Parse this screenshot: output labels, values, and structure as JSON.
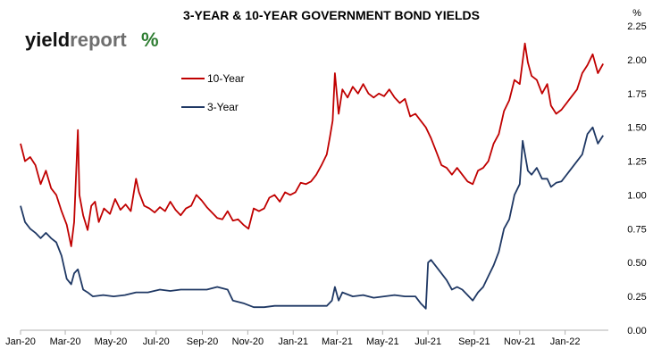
{
  "logo": {
    "part1": "yield",
    "part2": "report",
    "symbol": "%"
  },
  "chart_data": {
    "type": "line",
    "title": "3-YEAR & 10-YEAR GOVERNMENT BOND YIELDS",
    "y_unit": "%",
    "x_ticks": [
      "Jan-20",
      "Mar-20",
      "May-20",
      "Jul-20",
      "Sep-20",
      "Nov-20",
      "Jan-21",
      "Mar-21",
      "May-21",
      "Jul-21",
      "Sep-21",
      "Nov-21",
      "Jan-22"
    ],
    "y_ticks": [
      "2.25",
      "2.00",
      "1.75",
      "1.50",
      "1.25",
      "1.00",
      "0.75",
      "0.50",
      "0.25",
      "0.00"
    ],
    "ylim": [
      0,
      2.25
    ],
    "x_range": [
      "2020-01-01",
      "2022-02-28"
    ],
    "grid": false,
    "legend_position": "top-left",
    "series": [
      {
        "name": "10-Year",
        "color": "#c00000",
        "points": [
          [
            "2020-01-01",
            1.38
          ],
          [
            "2020-01-07",
            1.25
          ],
          [
            "2020-01-14",
            1.28
          ],
          [
            "2020-01-21",
            1.22
          ],
          [
            "2020-01-28",
            1.08
          ],
          [
            "2020-02-04",
            1.18
          ],
          [
            "2020-02-11",
            1.05
          ],
          [
            "2020-02-18",
            1.0
          ],
          [
            "2020-02-25",
            0.88
          ],
          [
            "2020-03-03",
            0.78
          ],
          [
            "2020-03-09",
            0.62
          ],
          [
            "2020-03-13",
            0.8
          ],
          [
            "2020-03-18",
            1.48
          ],
          [
            "2020-03-20",
            1.0
          ],
          [
            "2020-03-25",
            0.85
          ],
          [
            "2020-03-31",
            0.74
          ],
          [
            "2020-04-05",
            0.92
          ],
          [
            "2020-04-10",
            0.95
          ],
          [
            "2020-04-15",
            0.8
          ],
          [
            "2020-04-22",
            0.9
          ],
          [
            "2020-04-30",
            0.86
          ],
          [
            "2020-05-07",
            0.97
          ],
          [
            "2020-05-14",
            0.89
          ],
          [
            "2020-05-21",
            0.93
          ],
          [
            "2020-05-28",
            0.88
          ],
          [
            "2020-06-04",
            1.12
          ],
          [
            "2020-06-08",
            1.02
          ],
          [
            "2020-06-15",
            0.92
          ],
          [
            "2020-06-22",
            0.9
          ],
          [
            "2020-06-29",
            0.87
          ],
          [
            "2020-07-06",
            0.91
          ],
          [
            "2020-07-13",
            0.88
          ],
          [
            "2020-07-20",
            0.95
          ],
          [
            "2020-07-27",
            0.89
          ],
          [
            "2020-08-03",
            0.85
          ],
          [
            "2020-08-10",
            0.9
          ],
          [
            "2020-08-17",
            0.92
          ],
          [
            "2020-08-24",
            1.0
          ],
          [
            "2020-08-31",
            0.96
          ],
          [
            "2020-09-07",
            0.91
          ],
          [
            "2020-09-14",
            0.87
          ],
          [
            "2020-09-21",
            0.83
          ],
          [
            "2020-09-28",
            0.82
          ],
          [
            "2020-10-05",
            0.88
          ],
          [
            "2020-10-12",
            0.81
          ],
          [
            "2020-10-19",
            0.82
          ],
          [
            "2020-10-26",
            0.78
          ],
          [
            "2020-11-02",
            0.75
          ],
          [
            "2020-11-09",
            0.9
          ],
          [
            "2020-11-16",
            0.88
          ],
          [
            "2020-11-23",
            0.9
          ],
          [
            "2020-11-30",
            0.98
          ],
          [
            "2020-12-07",
            1.0
          ],
          [
            "2020-12-14",
            0.95
          ],
          [
            "2020-12-21",
            1.02
          ],
          [
            "2020-12-28",
            1.0
          ],
          [
            "2021-01-04",
            1.02
          ],
          [
            "2021-01-11",
            1.09
          ],
          [
            "2021-01-18",
            1.08
          ],
          [
            "2021-01-25",
            1.1
          ],
          [
            "2021-02-01",
            1.15
          ],
          [
            "2021-02-08",
            1.22
          ],
          [
            "2021-02-15",
            1.3
          ],
          [
            "2021-02-19",
            1.42
          ],
          [
            "2021-02-23",
            1.55
          ],
          [
            "2021-02-26",
            1.9
          ],
          [
            "2021-03-03",
            1.6
          ],
          [
            "2021-03-08",
            1.78
          ],
          [
            "2021-03-15",
            1.72
          ],
          [
            "2021-03-22",
            1.8
          ],
          [
            "2021-03-29",
            1.75
          ],
          [
            "2021-04-05",
            1.82
          ],
          [
            "2021-04-12",
            1.75
          ],
          [
            "2021-04-19",
            1.72
          ],
          [
            "2021-04-26",
            1.75
          ],
          [
            "2021-05-03",
            1.73
          ],
          [
            "2021-05-10",
            1.78
          ],
          [
            "2021-05-17",
            1.72
          ],
          [
            "2021-05-24",
            1.68
          ],
          [
            "2021-05-31",
            1.71
          ],
          [
            "2021-06-07",
            1.58
          ],
          [
            "2021-06-14",
            1.6
          ],
          [
            "2021-06-21",
            1.55
          ],
          [
            "2021-06-28",
            1.5
          ],
          [
            "2021-07-05",
            1.42
          ],
          [
            "2021-07-12",
            1.32
          ],
          [
            "2021-07-19",
            1.22
          ],
          [
            "2021-07-26",
            1.2
          ],
          [
            "2021-08-02",
            1.15
          ],
          [
            "2021-08-09",
            1.2
          ],
          [
            "2021-08-16",
            1.15
          ],
          [
            "2021-08-23",
            1.1
          ],
          [
            "2021-08-30",
            1.08
          ],
          [
            "2021-09-06",
            1.18
          ],
          [
            "2021-09-13",
            1.2
          ],
          [
            "2021-09-20",
            1.25
          ],
          [
            "2021-09-27",
            1.38
          ],
          [
            "2021-10-04",
            1.45
          ],
          [
            "2021-10-11",
            1.62
          ],
          [
            "2021-10-18",
            1.7
          ],
          [
            "2021-10-25",
            1.85
          ],
          [
            "2021-11-01",
            1.82
          ],
          [
            "2021-11-08",
            2.12
          ],
          [
            "2021-11-12",
            1.98
          ],
          [
            "2021-11-17",
            1.88
          ],
          [
            "2021-11-24",
            1.85
          ],
          [
            "2021-12-01",
            1.75
          ],
          [
            "2021-12-08",
            1.82
          ],
          [
            "2021-12-13",
            1.66
          ],
          [
            "2021-12-20",
            1.6
          ],
          [
            "2021-12-27",
            1.63
          ],
          [
            "2022-01-17",
            1.78
          ],
          [
            "2022-01-24",
            1.9
          ],
          [
            "2022-01-31",
            1.96
          ],
          [
            "2022-02-07",
            2.04
          ],
          [
            "2022-02-14",
            1.9
          ],
          [
            "2022-02-21",
            1.97
          ]
        ]
      },
      {
        "name": "3-Year",
        "color": "#1f3864",
        "points": [
          [
            "2020-01-01",
            0.92
          ],
          [
            "2020-01-07",
            0.8
          ],
          [
            "2020-01-14",
            0.75
          ],
          [
            "2020-01-21",
            0.72
          ],
          [
            "2020-01-28",
            0.68
          ],
          [
            "2020-02-04",
            0.72
          ],
          [
            "2020-02-11",
            0.68
          ],
          [
            "2020-02-18",
            0.65
          ],
          [
            "2020-02-25",
            0.55
          ],
          [
            "2020-03-03",
            0.38
          ],
          [
            "2020-03-09",
            0.34
          ],
          [
            "2020-03-13",
            0.42
          ],
          [
            "2020-03-18",
            0.45
          ],
          [
            "2020-03-25",
            0.3
          ],
          [
            "2020-03-31",
            0.28
          ],
          [
            "2020-04-07",
            0.25
          ],
          [
            "2020-04-21",
            0.26
          ],
          [
            "2020-05-05",
            0.25
          ],
          [
            "2020-05-20",
            0.26
          ],
          [
            "2020-06-04",
            0.28
          ],
          [
            "2020-06-20",
            0.28
          ],
          [
            "2020-07-06",
            0.3
          ],
          [
            "2020-07-20",
            0.29
          ],
          [
            "2020-08-03",
            0.3
          ],
          [
            "2020-08-20",
            0.3
          ],
          [
            "2020-09-07",
            0.3
          ],
          [
            "2020-09-21",
            0.32
          ],
          [
            "2020-10-05",
            0.3
          ],
          [
            "2020-10-12",
            0.22
          ],
          [
            "2020-10-26",
            0.2
          ],
          [
            "2020-11-09",
            0.17
          ],
          [
            "2020-11-23",
            0.17
          ],
          [
            "2020-12-07",
            0.18
          ],
          [
            "2020-12-21",
            0.18
          ],
          [
            "2021-01-04",
            0.18
          ],
          [
            "2021-01-25",
            0.18
          ],
          [
            "2021-02-15",
            0.18
          ],
          [
            "2021-02-22",
            0.22
          ],
          [
            "2021-02-26",
            0.32
          ],
          [
            "2021-03-03",
            0.22
          ],
          [
            "2021-03-08",
            0.28
          ],
          [
            "2021-03-22",
            0.25
          ],
          [
            "2021-04-05",
            0.26
          ],
          [
            "2021-04-19",
            0.24
          ],
          [
            "2021-05-03",
            0.25
          ],
          [
            "2021-05-17",
            0.26
          ],
          [
            "2021-05-31",
            0.25
          ],
          [
            "2021-06-14",
            0.25
          ],
          [
            "2021-06-21",
            0.2
          ],
          [
            "2021-06-28",
            0.16
          ],
          [
            "2021-07-01",
            0.5
          ],
          [
            "2021-07-05",
            0.52
          ],
          [
            "2021-07-12",
            0.47
          ],
          [
            "2021-07-19",
            0.42
          ],
          [
            "2021-07-26",
            0.37
          ],
          [
            "2021-08-02",
            0.3
          ],
          [
            "2021-08-09",
            0.32
          ],
          [
            "2021-08-16",
            0.3
          ],
          [
            "2021-08-23",
            0.26
          ],
          [
            "2021-08-30",
            0.22
          ],
          [
            "2021-09-06",
            0.28
          ],
          [
            "2021-09-13",
            0.32
          ],
          [
            "2021-09-20",
            0.4
          ],
          [
            "2021-09-27",
            0.48
          ],
          [
            "2021-10-04",
            0.58
          ],
          [
            "2021-10-11",
            0.75
          ],
          [
            "2021-10-18",
            0.82
          ],
          [
            "2021-10-25",
            1.0
          ],
          [
            "2021-11-01",
            1.08
          ],
          [
            "2021-11-05",
            1.4
          ],
          [
            "2021-11-12",
            1.18
          ],
          [
            "2021-11-17",
            1.15
          ],
          [
            "2021-11-24",
            1.2
          ],
          [
            "2021-12-01",
            1.12
          ],
          [
            "2021-12-08",
            1.12
          ],
          [
            "2021-12-13",
            1.06
          ],
          [
            "2021-12-20",
            1.09
          ],
          [
            "2021-12-27",
            1.1
          ],
          [
            "2022-01-17",
            1.25
          ],
          [
            "2022-01-24",
            1.3
          ],
          [
            "2022-01-31",
            1.45
          ],
          [
            "2022-02-07",
            1.5
          ],
          [
            "2022-02-14",
            1.38
          ],
          [
            "2022-02-21",
            1.44
          ]
        ]
      }
    ]
  }
}
